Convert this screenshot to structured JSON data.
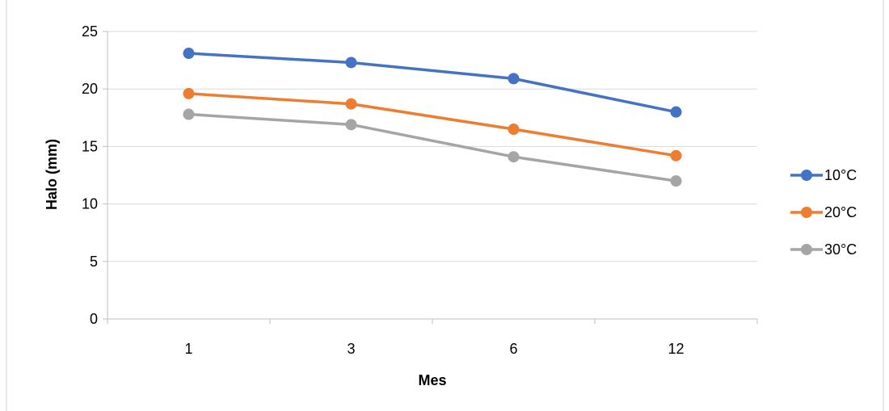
{
  "caption_fragment": "",
  "chart_data": {
    "type": "line",
    "categories": [
      "1",
      "3",
      "6",
      "12"
    ],
    "series": [
      {
        "name": "10°C",
        "color": "#4472C4",
        "values": [
          23.1,
          22.3,
          20.9,
          18.0
        ]
      },
      {
        "name": "20°C",
        "color": "#ED7D31",
        "values": [
          19.6,
          18.7,
          16.5,
          14.2
        ]
      },
      {
        "name": "30°C",
        "color": "#A5A5A5",
        "values": [
          17.8,
          16.9,
          14.1,
          12.0
        ]
      }
    ],
    "xlabel": "Mes",
    "ylabel": "Halo (mm)",
    "ylim": [
      0,
      25
    ],
    "yticks": [
      "0",
      "5",
      "10",
      "15",
      "20",
      "25"
    ],
    "grid": "horizontal",
    "legend": "right"
  }
}
